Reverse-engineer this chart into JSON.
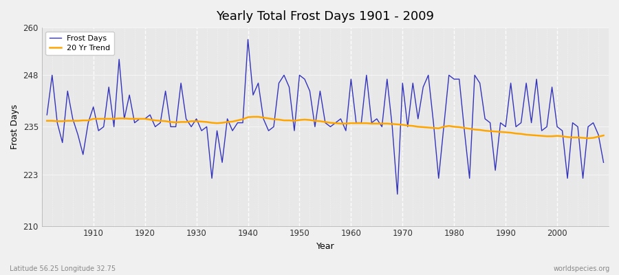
{
  "title": "Yearly Total Frost Days 1901 - 2009",
  "xlabel": "Year",
  "ylabel": "Frost Days",
  "ylim": [
    210,
    260
  ],
  "xlim": [
    1900,
    2010
  ],
  "yticks": [
    210,
    223,
    235,
    248,
    260
  ],
  "xticks": [
    1910,
    1920,
    1930,
    1940,
    1950,
    1960,
    1970,
    1980,
    1990,
    2000
  ],
  "fig_bg_color": "#f0f0f0",
  "plot_bg_color": "#e8e8e8",
  "line_color": "#3333bb",
  "trend_color": "#ffa500",
  "watermark": "worldspecies.org",
  "lat_lon_label": "Latitude 56.25 Longitude 32.75",
  "years": [
    1901,
    1902,
    1903,
    1904,
    1905,
    1906,
    1907,
    1908,
    1909,
    1910,
    1911,
    1912,
    1913,
    1914,
    1915,
    1916,
    1917,
    1918,
    1919,
    1920,
    1921,
    1922,
    1923,
    1924,
    1925,
    1926,
    1927,
    1928,
    1929,
    1930,
    1931,
    1932,
    1933,
    1934,
    1935,
    1936,
    1937,
    1938,
    1939,
    1940,
    1941,
    1942,
    1943,
    1944,
    1945,
    1946,
    1947,
    1948,
    1949,
    1950,
    1951,
    1952,
    1953,
    1954,
    1955,
    1956,
    1957,
    1958,
    1959,
    1960,
    1961,
    1962,
    1963,
    1964,
    1965,
    1966,
    1967,
    1968,
    1969,
    1970,
    1971,
    1972,
    1973,
    1974,
    1975,
    1976,
    1977,
    1978,
    1979,
    1980,
    1981,
    1982,
    1983,
    1984,
    1985,
    1986,
    1987,
    1988,
    1989,
    1990,
    1991,
    1992,
    1993,
    1994,
    1995,
    1996,
    1997,
    1998,
    1999,
    2000,
    2001,
    2002,
    2003,
    2004,
    2005,
    2006,
    2007,
    2008,
    2009
  ],
  "frost_days": [
    238,
    248,
    236,
    231,
    244,
    237,
    233,
    228,
    236,
    240,
    234,
    235,
    245,
    235,
    252,
    237,
    243,
    236,
    237,
    237,
    238,
    235,
    236,
    244,
    235,
    235,
    246,
    237,
    235,
    237,
    234,
    235,
    222,
    234,
    226,
    237,
    234,
    236,
    236,
    257,
    243,
    246,
    237,
    234,
    235,
    246,
    248,
    245,
    234,
    248,
    247,
    244,
    235,
    244,
    236,
    235,
    236,
    237,
    234,
    247,
    236,
    236,
    248,
    236,
    237,
    235,
    247,
    235,
    218,
    246,
    235,
    246,
    237,
    245,
    248,
    236,
    222,
    235,
    248,
    247,
    247,
    234,
    222,
    248,
    246,
    237,
    236,
    224,
    236,
    235,
    246,
    235,
    236,
    246,
    236,
    247,
    234,
    235,
    245,
    235,
    234,
    222,
    236,
    235,
    222,
    235,
    236,
    233,
    226
  ],
  "trend": [
    236.5,
    236.5,
    236.4,
    236.4,
    236.5,
    236.5,
    236.5,
    236.6,
    236.6,
    237.0,
    237.0,
    237.0,
    237.0,
    237.0,
    237.1,
    237.1,
    237.0,
    237.0,
    237.0,
    237.0,
    236.8,
    236.6,
    236.5,
    236.4,
    236.2,
    236.1,
    236.2,
    236.2,
    236.4,
    236.4,
    236.3,
    236.2,
    236.0,
    235.9,
    236.0,
    236.2,
    236.3,
    236.6,
    236.9,
    237.4,
    237.5,
    237.5,
    237.3,
    237.1,
    236.9,
    236.8,
    236.6,
    236.6,
    236.5,
    236.7,
    236.8,
    236.7,
    236.5,
    236.4,
    236.2,
    236.0,
    235.9,
    235.8,
    235.8,
    235.9,
    235.9,
    235.9,
    235.9,
    235.8,
    235.8,
    235.8,
    235.8,
    235.7,
    235.6,
    235.5,
    235.3,
    235.2,
    235.0,
    234.9,
    234.8,
    234.7,
    234.6,
    235.0,
    235.2,
    235.0,
    234.9,
    234.7,
    234.5,
    234.3,
    234.2,
    234.0,
    233.9,
    233.8,
    233.7,
    233.6,
    233.5,
    233.3,
    233.2,
    233.0,
    232.9,
    232.8,
    232.7,
    232.6,
    232.6,
    232.7,
    232.6,
    232.4,
    232.3,
    232.3,
    232.2,
    232.1,
    232.2,
    232.5,
    232.8
  ]
}
